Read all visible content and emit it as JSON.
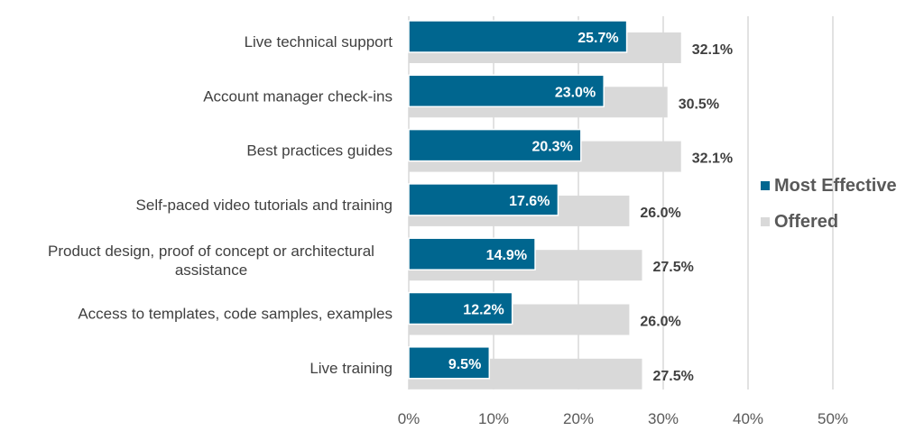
{
  "chart_data": {
    "type": "bar",
    "orientation": "horizontal",
    "title": "",
    "xlabel": "",
    "ylabel": "",
    "xlim": [
      0,
      50
    ],
    "grid": true,
    "legend_position": "right",
    "categories": [
      "Live technical support",
      "Account manager check-ins",
      "Best practices guides",
      "Self-paced video tutorials and training",
      "Product design, proof of concept or architectural assistance",
      "Access to templates, code samples, examples",
      "Live training"
    ],
    "category_lines": [
      [
        "Live technical support"
      ],
      [
        "Account manager check-ins"
      ],
      [
        "Best practices guides"
      ],
      [
        "Self-paced video tutorials and training"
      ],
      [
        "Product design, proof of concept or architectural",
        "assistance"
      ],
      [
        "Access to templates, code samples, examples"
      ],
      [
        "Live training"
      ]
    ],
    "series": [
      {
        "name": "Most Effective",
        "color": "#00668F",
        "values": [
          25.7,
          23.0,
          20.3,
          17.6,
          14.9,
          12.2,
          9.5
        ],
        "labels": [
          "25.7%",
          "23.0%",
          "20.3%",
          "17.6%",
          "14.9%",
          "12.2%",
          "9.5%"
        ]
      },
      {
        "name": "Offered",
        "color": "#D9D9D9",
        "values": [
          32.1,
          30.5,
          32.1,
          26.0,
          27.5,
          26.0,
          27.5
        ],
        "labels": [
          "32.1%",
          "30.5%",
          "32.1%",
          "26.0%",
          "27.5%",
          "26.0%",
          "27.5%"
        ]
      }
    ],
    "xticks": [
      0,
      10,
      20,
      30,
      40,
      50
    ],
    "xtick_labels": [
      "0%",
      "10%",
      "20%",
      "30%",
      "40%",
      "50%"
    ]
  }
}
